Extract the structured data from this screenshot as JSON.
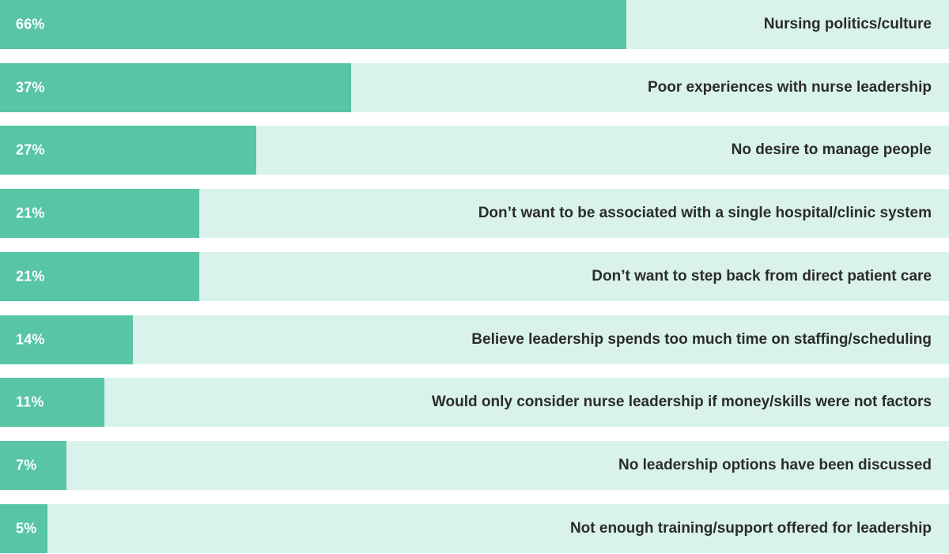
{
  "chart_data": {
    "type": "bar",
    "orientation": "horizontal",
    "xlim": [
      0,
      100
    ],
    "colors": {
      "bar": "#58c5a7",
      "track": "#d9f2ec",
      "value_label": "#ffffff",
      "category_label": "#2b2b2b"
    },
    "bars": [
      {
        "value": 66,
        "display": "66%",
        "label": "Nursing politics/culture"
      },
      {
        "value": 37,
        "display": "37%",
        "label": "Poor experiences with nurse leadership"
      },
      {
        "value": 27,
        "display": "27%",
        "label": "No desire to manage people"
      },
      {
        "value": 21,
        "display": "21%",
        "label": "Don’t want to be associated with a single hospital/clinic system"
      },
      {
        "value": 21,
        "display": "21%",
        "label": "Don’t want to step back from direct patient care"
      },
      {
        "value": 14,
        "display": "14%",
        "label": "Believe leadership spends too much time on staffing/scheduling"
      },
      {
        "value": 11,
        "display": "11%",
        "label": "Would only consider nurse leadership if money/skills were not factors"
      },
      {
        "value": 7,
        "display": "7%",
        "label": "No leadership options have been discussed"
      },
      {
        "value": 5,
        "display": "5%",
        "label": "Not enough training/support offered for leadership"
      }
    ]
  }
}
